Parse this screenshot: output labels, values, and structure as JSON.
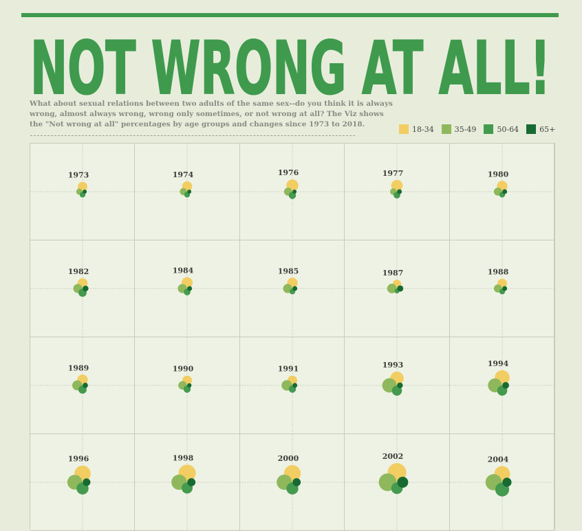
{
  "title": "NOT WRONG AT ALL!",
  "subtitle": "What about sexual relations between two adults of the same sex--do you think it is always wrong, almost always wrong, wrong only sometimes, or not wrong at all? The Viz  shows the \"Not wrong at all\" percentages by age groups and changes  since 1973 to 2018.",
  "colors": {
    "title": "#3f9a4e",
    "background": "#e8eddb",
    "panel": "#eef2e4"
  },
  "chart_data": {
    "type": "small-multiples-petal",
    "unit": "Not wrong at all (%)",
    "legend_position": "top-right",
    "series": [
      {
        "name": "18-34",
        "color": "#f2cd62",
        "direction": "up"
      },
      {
        "name": "35-49",
        "color": "#8fb85c",
        "direction": "left"
      },
      {
        "name": "50-64",
        "color": "#449a4e",
        "direction": "down"
      },
      {
        "name": "65+",
        "color": "#176b32",
        "direction": "right"
      }
    ],
    "panels": [
      {
        "year": "1973",
        "values": [
          20,
          13,
          12,
          5
        ]
      },
      {
        "year": "1974",
        "values": [
          21,
          15,
          12,
          7
        ]
      },
      {
        "year": "1976",
        "values": [
          25,
          17,
          15,
          8
        ]
      },
      {
        "year": "1977",
        "values": [
          24,
          14,
          14,
          10
        ]
      },
      {
        "year": "1980",
        "values": [
          22,
          17,
          12,
          10
        ]
      },
      {
        "year": "1982",
        "values": [
          21,
          19,
          17,
          12
        ]
      },
      {
        "year": "1984",
        "values": [
          23,
          19,
          14,
          10
        ]
      },
      {
        "year": "1985",
        "values": [
          22,
          19,
          12,
          10
        ]
      },
      {
        "year": "1987",
        "values": [
          18,
          20,
          10,
          13
        ]
      },
      {
        "year": "1988",
        "values": [
          20,
          17,
          12,
          10
        ]
      },
      {
        "year": "1989",
        "values": [
          22,
          21,
          17,
          11
        ]
      },
      {
        "year": "1990",
        "values": [
          20,
          18,
          15,
          9
        ]
      },
      {
        "year": "1991",
        "values": [
          20,
          22,
          15,
          10
        ]
      },
      {
        "year": "1993",
        "values": [
          28,
          30,
          21,
          12
        ]
      },
      {
        "year": "1994",
        "values": [
          31,
          29,
          21,
          14
        ]
      },
      {
        "year": "1996",
        "values": [
          34,
          31,
          25,
          16
        ]
      },
      {
        "year": "1998",
        "values": [
          36,
          32,
          23,
          17
        ]
      },
      {
        "year": "2000",
        "values": [
          35,
          32,
          25,
          17
        ]
      },
      {
        "year": "2002",
        "values": [
          39,
          37,
          24,
          23
        ]
      },
      {
        "year": "2004",
        "values": [
          33,
          34,
          29,
          19
        ]
      }
    ]
  }
}
